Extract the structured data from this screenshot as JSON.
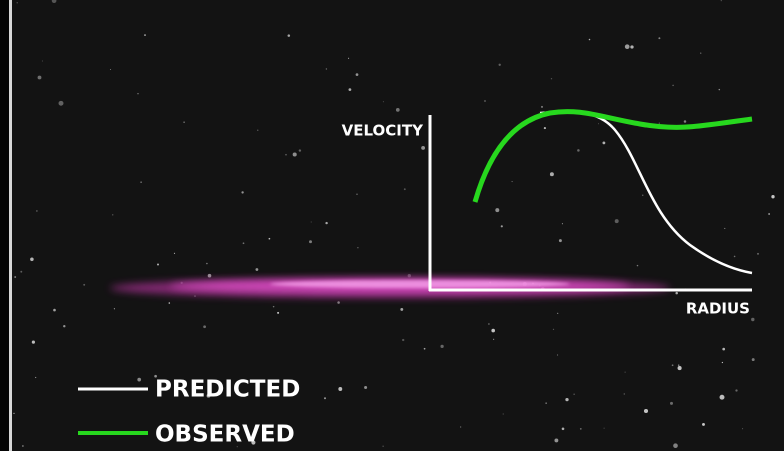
{
  "axes": {
    "y_label": "VELOCITY",
    "x_label": "RADIUS"
  },
  "legend": [
    {
      "label": "PREDICTED"
    },
    {
      "label": "OBSERVED"
    }
  ]
}
